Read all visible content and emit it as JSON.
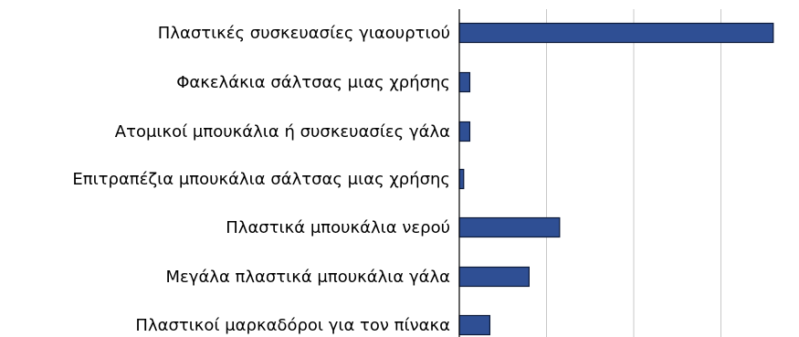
{
  "chart_data": {
    "type": "bar",
    "orientation": "horizontal",
    "title": "",
    "xlabel": "",
    "ylabel": "",
    "categories": [
      "Πλαστικές συσκευασίες γιαουρτιού",
      "Φακελάκια σάλτσας μιας χρήσης",
      "Ατομικοί μπουκάλια ή συσκευασίες γάλα",
      "Επιτραπέζια μπουκάλια σάλτσας μιας χρήσης",
      "Πλαστικά μπουκάλια νερού",
      "Μεγάλα πλαστικά μπουκάλια γάλα",
      "Πλαστικοί μαρκαδόροι για τον πίνακα"
    ],
    "values": [
      3.6,
      0.12,
      0.12,
      0.05,
      1.15,
      0.8,
      0.35
    ],
    "xlim": [
      0,
      3.85
    ],
    "x_gridlines": [
      1,
      2,
      3
    ],
    "grid": true,
    "legend": "none",
    "bar_color": "#2f4f94",
    "bar_edge_color": "#0d1a3a",
    "gridline_color": "#c8c8c8"
  }
}
